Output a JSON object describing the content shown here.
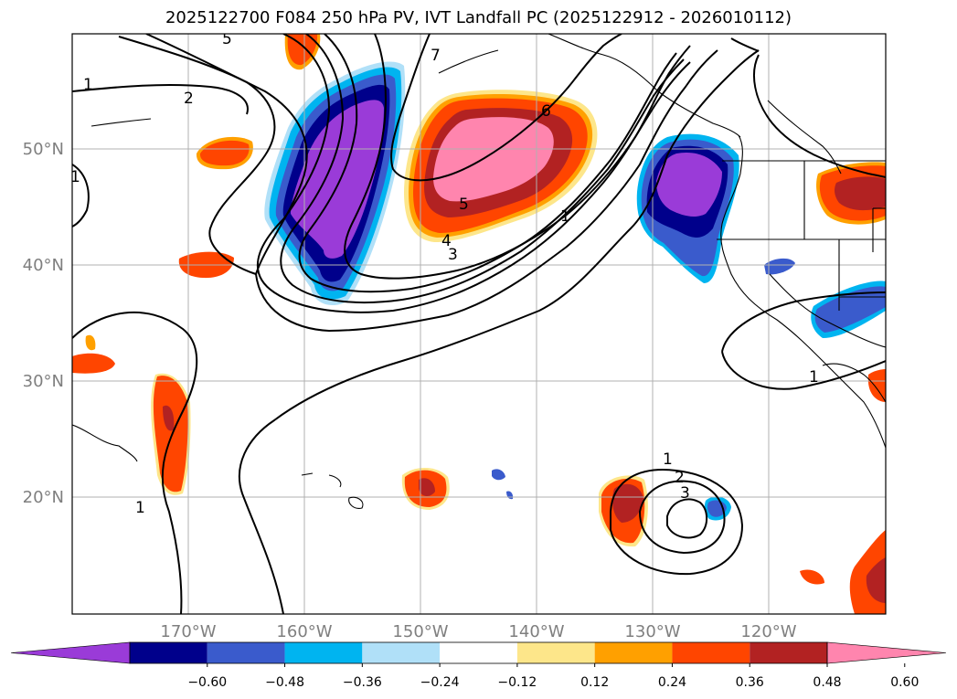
{
  "title": "2025122700 F084 250 hPa PV, IVT Landfall PC (2025122912 - 2026010112)",
  "longitude_ticks": [
    "170°W",
    "160°W",
    "150°W",
    "140°W",
    "130°W",
    "120°W"
  ],
  "latitude_ticks": [
    "50°N",
    "40°N",
    "30°N",
    "20°N"
  ],
  "colorbar": {
    "colors": [
      "#9a3bd8",
      "#00008b",
      "#3a5bcc",
      "#00b4f0",
      "#b0e0f8",
      "#ffffff",
      "#fde68a",
      "#ffa000",
      "#ff4500",
      "#b22222",
      "#ff85ae"
    ],
    "tick_labels": [
      "−0.60",
      "−0.48",
      "−0.36",
      "−0.24",
      "−0.12",
      "0.12",
      "0.24",
      "0.36",
      "0.48",
      "0.60"
    ]
  },
  "contour_labels": [
    "5",
    "1",
    "2",
    "1",
    "7",
    "6",
    "5",
    "4",
    "3",
    "1",
    "1",
    "1",
    "2",
    "3",
    "1"
  ]
}
